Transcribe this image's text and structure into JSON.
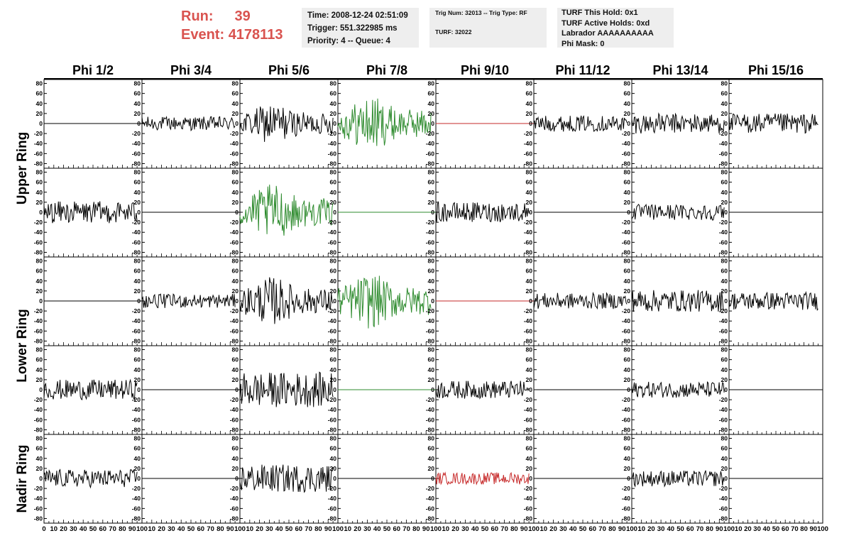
{
  "header": {
    "run_label": "Run:",
    "run_value": "39",
    "event_label": "Event:",
    "event_value": "4178113",
    "colors": {
      "run_text": "#d9534f",
      "box_bg": "#eeeeee"
    }
  },
  "info_box_1": {
    "time": "Time: 2008-12-24 02:51:09",
    "trigger": "Trigger: 551.322985 ms",
    "priority": "Priority: 4 -- Queue: 4"
  },
  "info_box_2": {
    "trig": "Trig Num: 32013 -- Trig Type: RF",
    "turf": "TURF: 32022"
  },
  "info_box_3": {
    "hold": "TURF This Hold: 0x1",
    "active": "TURF Active Holds: 0xd",
    "labrador": "Labrador AAAAAAAAAA",
    "mask": "Phi Mask: 0"
  },
  "chart_data": {
    "type": "line",
    "columns": [
      "Phi 1/2",
      "Phi 3/4",
      "Phi 5/6",
      "Phi 7/8",
      "Phi 9/10",
      "Phi 11/12",
      "Phi 13/14",
      "Phi 15/16"
    ],
    "rings": [
      "Upper Ring",
      "Lower Ring",
      "Nadir Ring"
    ],
    "rows_per_ring": [
      2,
      2,
      1
    ],
    "ylim": [
      -85,
      85
    ],
    "yticks": [
      80,
      60,
      40,
      20,
      0,
      -20,
      -40,
      -60,
      -80
    ],
    "xlim": [
      0,
      100
    ],
    "xticks_first": [
      "0",
      "10",
      "20",
      "30",
      "40",
      "50",
      "60",
      "70",
      "80",
      "90",
      "100"
    ],
    "xticks": [
      "10",
      "20",
      "30",
      "40",
      "50",
      "60",
      "70",
      "80",
      "90",
      "100"
    ],
    "colors": {
      "black": "#000000",
      "green": "#2e8b2e",
      "red": "#c62828"
    },
    "panels": [
      [
        {
          "color": "black",
          "flat": true,
          "amp": 0,
          "end": 0.95
        },
        {
          "color": "black",
          "flat": false,
          "amp": 14,
          "end": 0.95
        },
        {
          "color": "black",
          "flat": false,
          "amp": 30,
          "end": 0.95
        },
        {
          "color": "green",
          "flat": false,
          "amp": 40,
          "end": 0.95
        },
        {
          "color": "red",
          "flat": true,
          "amp": 0,
          "end": 0.95
        },
        {
          "color": "black",
          "flat": false,
          "amp": 16,
          "end": 0.95
        },
        {
          "color": "black",
          "flat": false,
          "amp": 20,
          "end": 0.95
        },
        {
          "color": "black",
          "flat": false,
          "amp": 20,
          "end": 0.95
        }
      ],
      [
        {
          "color": "black",
          "flat": false,
          "amp": 22,
          "end": 0.95
        },
        {
          "color": "black",
          "flat": true,
          "amp": 0,
          "end": 0.95
        },
        {
          "color": "green",
          "flat": false,
          "amp": 40,
          "end": 0.95
        },
        {
          "color": "green",
          "flat": true,
          "amp": 0,
          "end": 0.95
        },
        {
          "color": "black",
          "flat": false,
          "amp": 20,
          "end": 0.95
        },
        {
          "color": "black",
          "flat": true,
          "amp": 0,
          "end": 0.95
        },
        {
          "color": "black",
          "flat": false,
          "amp": 16,
          "end": 0.95
        },
        {
          "color": "black",
          "flat": true,
          "amp": 0,
          "end": 0.95
        }
      ],
      [
        {
          "color": "black",
          "flat": true,
          "amp": 0,
          "end": 0.95
        },
        {
          "color": "black",
          "flat": false,
          "amp": 14,
          "end": 0.95
        },
        {
          "color": "black",
          "flat": false,
          "amp": 35,
          "end": 0.95
        },
        {
          "color": "green",
          "flat": false,
          "amp": 40,
          "end": 0.95
        },
        {
          "color": "red",
          "flat": true,
          "amp": 0,
          "end": 0.95
        },
        {
          "color": "black",
          "flat": false,
          "amp": 16,
          "end": 0.95
        },
        {
          "color": "black",
          "flat": false,
          "amp": 22,
          "end": 0.95
        },
        {
          "color": "black",
          "flat": false,
          "amp": 18,
          "end": 0.95
        }
      ],
      [
        {
          "color": "black",
          "flat": false,
          "amp": 20,
          "end": 0.95
        },
        {
          "color": "black",
          "flat": true,
          "amp": 0,
          "end": 0.95
        },
        {
          "color": "black",
          "flat": false,
          "amp": 35,
          "end": 0.95
        },
        {
          "color": "green",
          "flat": true,
          "amp": 0,
          "end": 0.95
        },
        {
          "color": "black",
          "flat": false,
          "amp": 18,
          "end": 0.95
        },
        {
          "color": "black",
          "flat": true,
          "amp": 0,
          "end": 0.95
        },
        {
          "color": "black",
          "flat": false,
          "amp": 16,
          "end": 0.95
        },
        {
          "color": "black",
          "flat": true,
          "amp": 0,
          "end": 0.95
        }
      ],
      [
        {
          "color": "black",
          "flat": false,
          "amp": 18,
          "end": 0.95
        },
        {
          "color": "black",
          "flat": true,
          "amp": 0,
          "end": 0.95
        },
        {
          "color": "black",
          "flat": false,
          "amp": 28,
          "end": 0.95
        },
        {
          "color": "black",
          "flat": true,
          "amp": 0,
          "end": 0.95
        },
        {
          "color": "red",
          "flat": false,
          "amp": 12,
          "end": 0.95
        },
        {
          "color": "black",
          "flat": true,
          "amp": 0,
          "end": 0.95
        },
        {
          "color": "black",
          "flat": false,
          "amp": 16,
          "end": 0.95
        },
        {
          "color": "black",
          "flat": true,
          "amp": 0,
          "end": 0.95
        }
      ]
    ]
  }
}
